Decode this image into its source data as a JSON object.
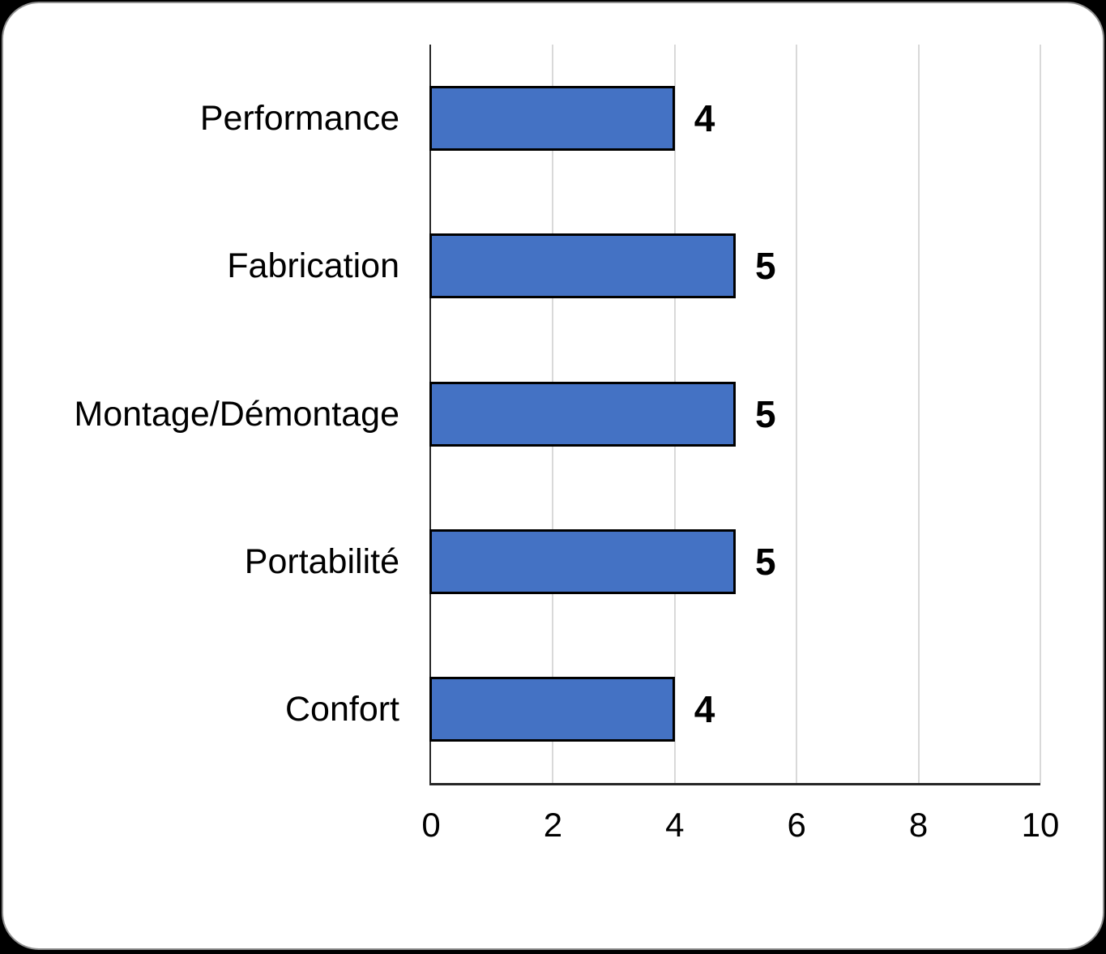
{
  "chart_data": {
    "type": "bar",
    "orientation": "horizontal",
    "title": "",
    "categories": [
      "Performance",
      "Fabrication",
      "Montage/Démontage",
      "Portabilité",
      "Confort"
    ],
    "values": [
      4,
      5,
      5,
      5,
      4
    ],
    "data_labels": [
      "4",
      "5",
      "5",
      "5",
      "4"
    ],
    "xlim": [
      0,
      10
    ],
    "x_ticks": [
      "0",
      "2",
      "4",
      "6",
      "8",
      "10"
    ],
    "x_tick_values": [
      0,
      2,
      4,
      6,
      8,
      10
    ],
    "grid": "vertical-only",
    "legend": "none",
    "colors": {
      "bar_fill": "#4472C4",
      "bar_border": "#000000",
      "gridline": "#D9D9D9",
      "axis_line": "#262626",
      "text": "#000000",
      "card_background": "#FFFFFF",
      "card_border": "#8F8F8F",
      "page_background": "#000000"
    }
  }
}
